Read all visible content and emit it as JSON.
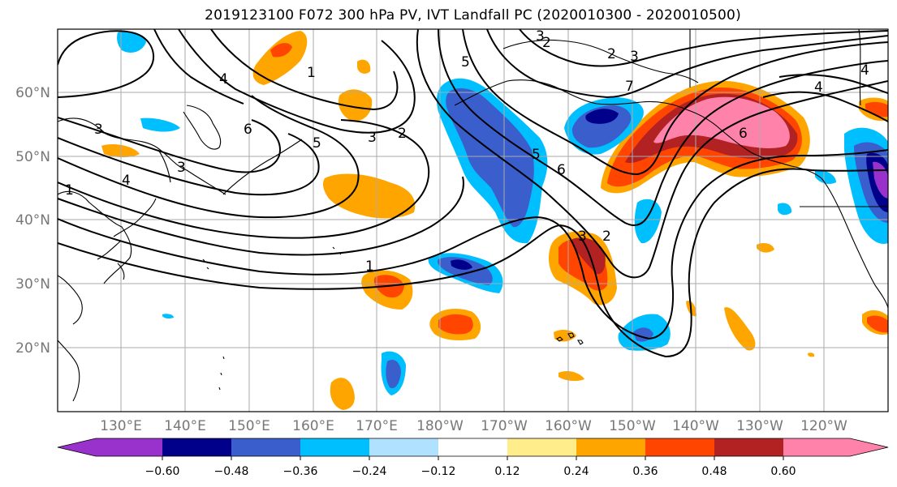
{
  "title": "2019123100 F072 300 hPa PV, IVT Landfall PC (2020010300 - 2020010500)",
  "map": {
    "lat_labels": [
      "60°N",
      "50°N",
      "40°N",
      "30°N",
      "20°N"
    ],
    "lon_labels": [
      "130°E",
      "140°E",
      "150°E",
      "160°E",
      "170°E",
      "180°W",
      "170°W",
      "160°W",
      "150°W",
      "140°W",
      "130°W",
      "120°W"
    ],
    "contour_labels": [
      "4",
      "1",
      "2",
      "3",
      "4",
      "3",
      "5",
      "6",
      "2",
      "3",
      "4",
      "5",
      "6",
      "7",
      "6",
      "5",
      "3",
      "2",
      "1",
      "3",
      "4",
      "1",
      "2",
      "3"
    ]
  },
  "colorbar": {
    "tick_labels": [
      "−0.60",
      "−0.48",
      "−0.36",
      "−0.24",
      "−0.12",
      "0.12",
      "0.24",
      "0.36",
      "0.48",
      "0.60"
    ],
    "colors": [
      "#9932cc",
      "#00008b",
      "#3a5fcd",
      "#00bfff",
      "#b0e2ff",
      "#ffffff",
      "#ffec8b",
      "#ffa500",
      "#ff4500",
      "#b22222",
      "#ff82ab"
    ]
  }
}
